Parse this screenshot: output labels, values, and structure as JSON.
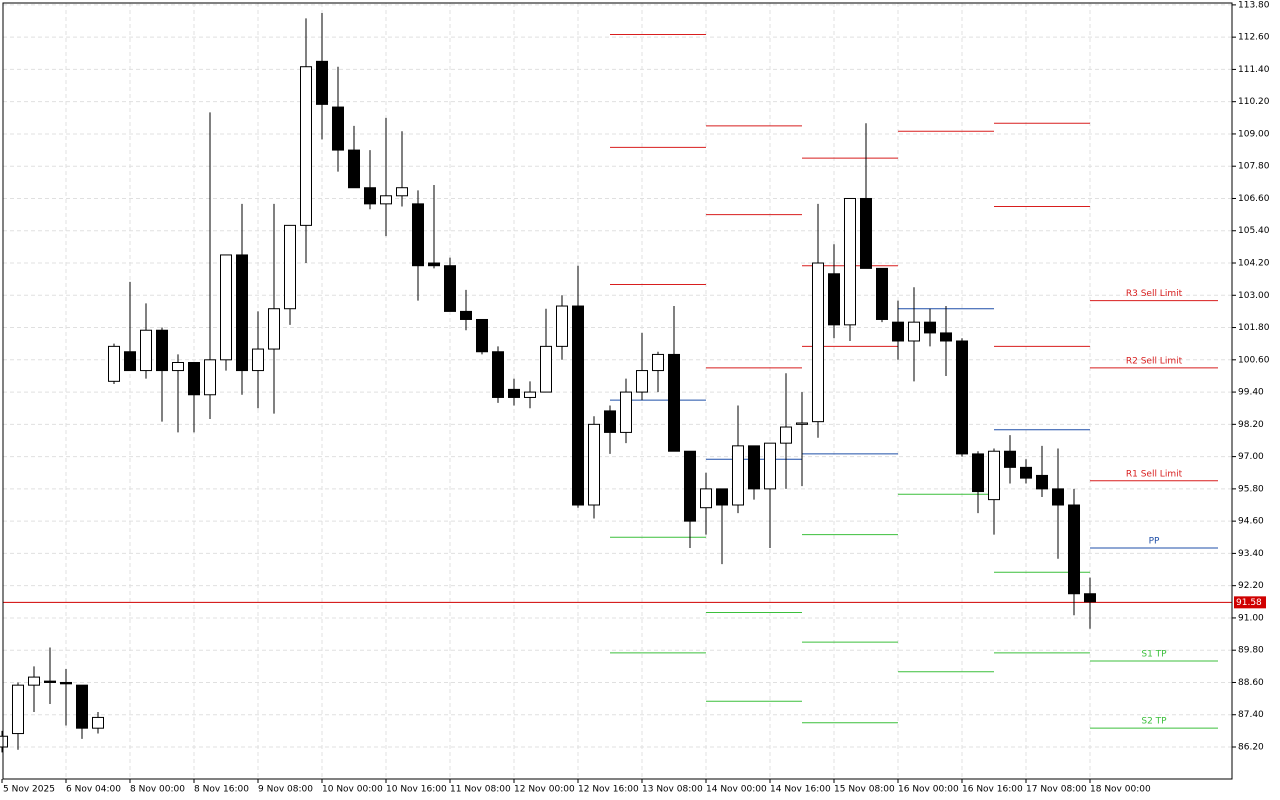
{
  "chart_data": {
    "type": "candlestick",
    "categories": [
      "5 Nov 2025",
      null,
      null,
      null,
      "6 Nov 04:00",
      null,
      null,
      null,
      "8 Nov 00:00",
      null,
      null,
      null,
      "8 Nov 16:00",
      null,
      null,
      null,
      "9 Nov 08:00",
      null,
      null,
      null,
      "10 Nov 00:00",
      null,
      null,
      null,
      "10 Nov 16:00",
      null,
      null,
      null,
      "11 Nov 08:00",
      null,
      null,
      null,
      "12 Nov 00:00",
      null,
      null,
      null,
      "12 Nov 16:00",
      null,
      null,
      null,
      "13 Nov 08:00",
      null,
      null,
      null,
      "14 Nov 00:00",
      null,
      null,
      null,
      "14 Nov 16:00",
      null,
      null,
      null,
      "15 Nov 08:00",
      null,
      null,
      null,
      "16 Nov 00:00",
      null,
      null,
      null,
      "16 Nov 16:00",
      null,
      null,
      null,
      "17 Nov 08:00",
      null,
      null,
      null,
      "18 Nov 00:00"
    ],
    "open": [
      86.2,
      86.7,
      88.5,
      88.65,
      88.6,
      88.5,
      86.9,
      99.8,
      100.9,
      100.2,
      101.7,
      100.2,
      100.5,
      99.3,
      100.6,
      104.5,
      100.2,
      101.0,
      102.5,
      105.6,
      111.7,
      110.0,
      108.4,
      107.0,
      106.4,
      106.7,
      106.4,
      104.2,
      104.1,
      102.4,
      102.1,
      100.9,
      99.5,
      99.2,
      99.4,
      101.1,
      102.6,
      95.2,
      98.7,
      97.9,
      99.4,
      100.2,
      100.8,
      97.2,
      95.1,
      95.8,
      95.2,
      97.4,
      95.8,
      97.5,
      98.2,
      98.3,
      103.8,
      101.9,
      106.6,
      104.0,
      102.0,
      101.3,
      102.0,
      101.6,
      101.3,
      97.1,
      95.4,
      97.2,
      96.6,
      96.3,
      95.8,
      95.2,
      91.9
    ],
    "high": [
      86.8,
      88.6,
      89.2,
      89.9,
      89.1,
      88.5,
      87.5,
      101.2,
      103.5,
      102.7,
      101.8,
      100.8,
      100.5,
      109.8,
      104.5,
      106.4,
      102.4,
      106.4,
      105.6,
      113.3,
      113.5,
      111.5,
      109.3,
      108.4,
      109.6,
      109.1,
      106.9,
      107.1,
      104.4,
      103.2,
      102.1,
      101.1,
      99.9,
      99.8,
      102.5,
      103.0,
      104.1,
      98.5,
      98.9,
      99.9,
      101.6,
      100.9,
      102.6,
      97.2,
      96.4,
      95.8,
      98.9,
      97.4,
      97.5,
      100.1,
      99.4,
      106.4,
      104.9,
      106.6,
      109.4,
      104.0,
      102.8,
      103.3,
      102.5,
      102.6,
      101.4,
      97.2,
      97.3,
      97.8,
      96.9,
      97.4,
      97.3,
      95.8,
      92.5
    ],
    "low": [
      86.0,
      86.1,
      87.5,
      87.8,
      87.0,
      86.5,
      86.7,
      99.7,
      100.2,
      99.9,
      98.3,
      97.9,
      97.9,
      98.4,
      100.2,
      99.3,
      98.8,
      98.6,
      101.9,
      104.2,
      108.8,
      107.6,
      107.0,
      106.2,
      105.2,
      106.3,
      102.8,
      104.0,
      102.4,
      101.7,
      100.8,
      99.0,
      98.9,
      98.8,
      99.4,
      100.6,
      95.1,
      94.7,
      97.1,
      97.5,
      99.1,
      99.4,
      97.2,
      93.6,
      94.1,
      93.0,
      94.9,
      95.4,
      93.6,
      95.8,
      95.9,
      97.7,
      101.4,
      101.3,
      104.0,
      102.0,
      100.6,
      99.8,
      101.1,
      100.0,
      97.0,
      94.9,
      94.1,
      96.0,
      96.0,
      95.5,
      93.2,
      91.1,
      90.6
    ],
    "close": [
      86.6,
      88.5,
      88.8,
      88.6,
      88.55,
      86.9,
      87.3,
      101.1,
      100.2,
      101.7,
      100.2,
      100.5,
      99.3,
      100.6,
      104.5,
      100.2,
      101.0,
      102.5,
      105.6,
      111.5,
      110.1,
      108.4,
      107.0,
      106.4,
      106.7,
      107.0,
      104.1,
      104.1,
      102.4,
      102.1,
      100.9,
      99.2,
      99.2,
      99.4,
      101.1,
      102.6,
      95.2,
      98.2,
      97.9,
      99.4,
      100.2,
      100.8,
      97.2,
      94.6,
      95.8,
      95.2,
      97.4,
      95.8,
      97.5,
      98.1,
      98.25,
      104.2,
      101.9,
      106.6,
      104.0,
      102.1,
      101.3,
      102.0,
      101.6,
      101.3,
      97.1,
      95.7,
      97.2,
      96.6,
      96.2,
      95.8,
      95.2,
      91.9,
      91.6
    ],
    "levels": [
      {
        "name": "R3 Sell Limit",
        "color": "#d81e1e",
        "values": [
          112.7,
          109.3,
          108.1,
          null,
          109.4,
          102.8
        ]
      },
      {
        "name": "R2 Sell Limit",
        "color": "#d81e1e",
        "values": [
          108.5,
          106.0,
          104.1,
          null,
          106.3,
          100.3
        ]
      },
      {
        "name": "R1 Sell Limit",
        "color": "#d81e1e",
        "values": [
          103.4,
          100.3,
          101.1,
          109.1,
          101.1,
          96.1
        ]
      },
      {
        "name": "PP",
        "color": "#1f4fa8",
        "values": [
          99.1,
          96.9,
          97.1,
          102.5,
          98.0,
          93.6
        ]
      },
      {
        "name": "S1 TP",
        "color": "#3cbf3c",
        "values": [
          94.0,
          91.2,
          94.1,
          95.6,
          92.7,
          89.4
        ]
      },
      {
        "name": "S2 TP",
        "color": "#3cbf3c",
        "values": [
          89.7,
          87.9,
          90.1,
          89.0,
          89.7,
          86.9
        ]
      },
      {
        "color": "#3cbf3c",
        "values": [
          null,
          null,
          87.1,
          null,
          null,
          null
        ]
      }
    ],
    "last_price": {
      "value": 91.58,
      "label": "91.58"
    },
    "ylim": [
      85.01,
      113.87
    ],
    "yticks": [
      {
        "value": 86.2,
        "label": "86.20"
      },
      {
        "value": 87.4,
        "label": "87.40"
      },
      {
        "value": 88.6,
        "label": "88.60"
      },
      {
        "value": 89.8,
        "label": "89.80"
      },
      {
        "value": 91.0,
        "label": "91.00"
      },
      {
        "value": 92.2,
        "label": "92.20"
      },
      {
        "value": 93.4,
        "label": "93.40"
      },
      {
        "value": 94.6,
        "label": "94.60"
      },
      {
        "value": 95.8,
        "label": "95.80"
      },
      {
        "value": 97.0,
        "label": "97.00"
      },
      {
        "value": 98.2,
        "label": "98.20"
      },
      {
        "value": 99.4,
        "label": "99.40"
      },
      {
        "value": 100.6,
        "label": "100.60"
      },
      {
        "value": 101.8,
        "label": "101.80"
      },
      {
        "value": 103.0,
        "label": "103.00"
      },
      {
        "value": 104.2,
        "label": "104.20"
      },
      {
        "value": 105.4,
        "label": "105.40"
      },
      {
        "value": 106.6,
        "label": "106.60"
      },
      {
        "value": 107.8,
        "label": "107.80"
      },
      {
        "value": 109.0,
        "label": "109.00"
      },
      {
        "value": 110.2,
        "label": "110.20"
      },
      {
        "value": 111.4,
        "label": "111.40"
      },
      {
        "value": 112.6,
        "label": "112.60"
      },
      {
        "value": 113.8,
        "label": "113.80"
      }
    ],
    "grid": true
  }
}
